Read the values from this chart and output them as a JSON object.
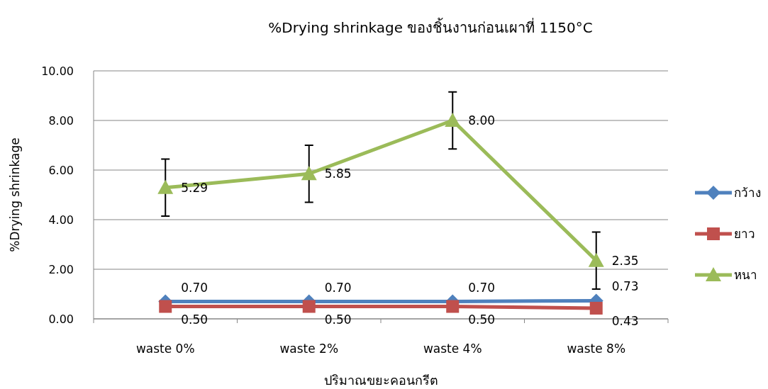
{
  "chart_data": {
    "type": "line",
    "title": "%Drying shrinkage ของชิ้นงานก่อนเผาที่ 1150°C",
    "xlabel": "ปริมาณขยะคอนกรีต",
    "ylabel": "%Drying shrinkage",
    "categories": [
      "waste 0%",
      "waste 2%",
      "waste 4%",
      "waste 8%"
    ],
    "series": [
      {
        "name": "กว้าง",
        "color": "#4f81bd",
        "marker": "diamond",
        "values": [
          0.7,
          0.7,
          0.7,
          0.73
        ],
        "value_labels": [
          "0.70",
          "0.70",
          "0.70",
          "0.73"
        ]
      },
      {
        "name": "ยาว",
        "color": "#c0504d",
        "marker": "square",
        "values": [
          0.5,
          0.5,
          0.5,
          0.43
        ],
        "value_labels": [
          "0.50",
          "0.50",
          "0.50",
          "0.43"
        ]
      },
      {
        "name": "หนา",
        "color": "#9bbb59",
        "marker": "triangle",
        "values": [
          5.29,
          5.85,
          8.0,
          2.35
        ],
        "value_labels": [
          "5.29",
          "5.85",
          "8.00",
          "2.35"
        ],
        "errors": [
          1.15,
          1.15,
          1.15,
          1.15
        ]
      }
    ],
    "ylim": [
      0,
      10
    ],
    "yticks": [
      {
        "value": 0,
        "label": "0.00"
      },
      {
        "value": 2,
        "label": "2.00"
      },
      {
        "value": 4,
        "label": "4.00"
      },
      {
        "value": 6,
        "label": "6.00"
      },
      {
        "value": 8,
        "label": "8.00"
      },
      {
        "value": 10,
        "label": "10.00"
      }
    ],
    "grid": "y",
    "legend": "right"
  }
}
